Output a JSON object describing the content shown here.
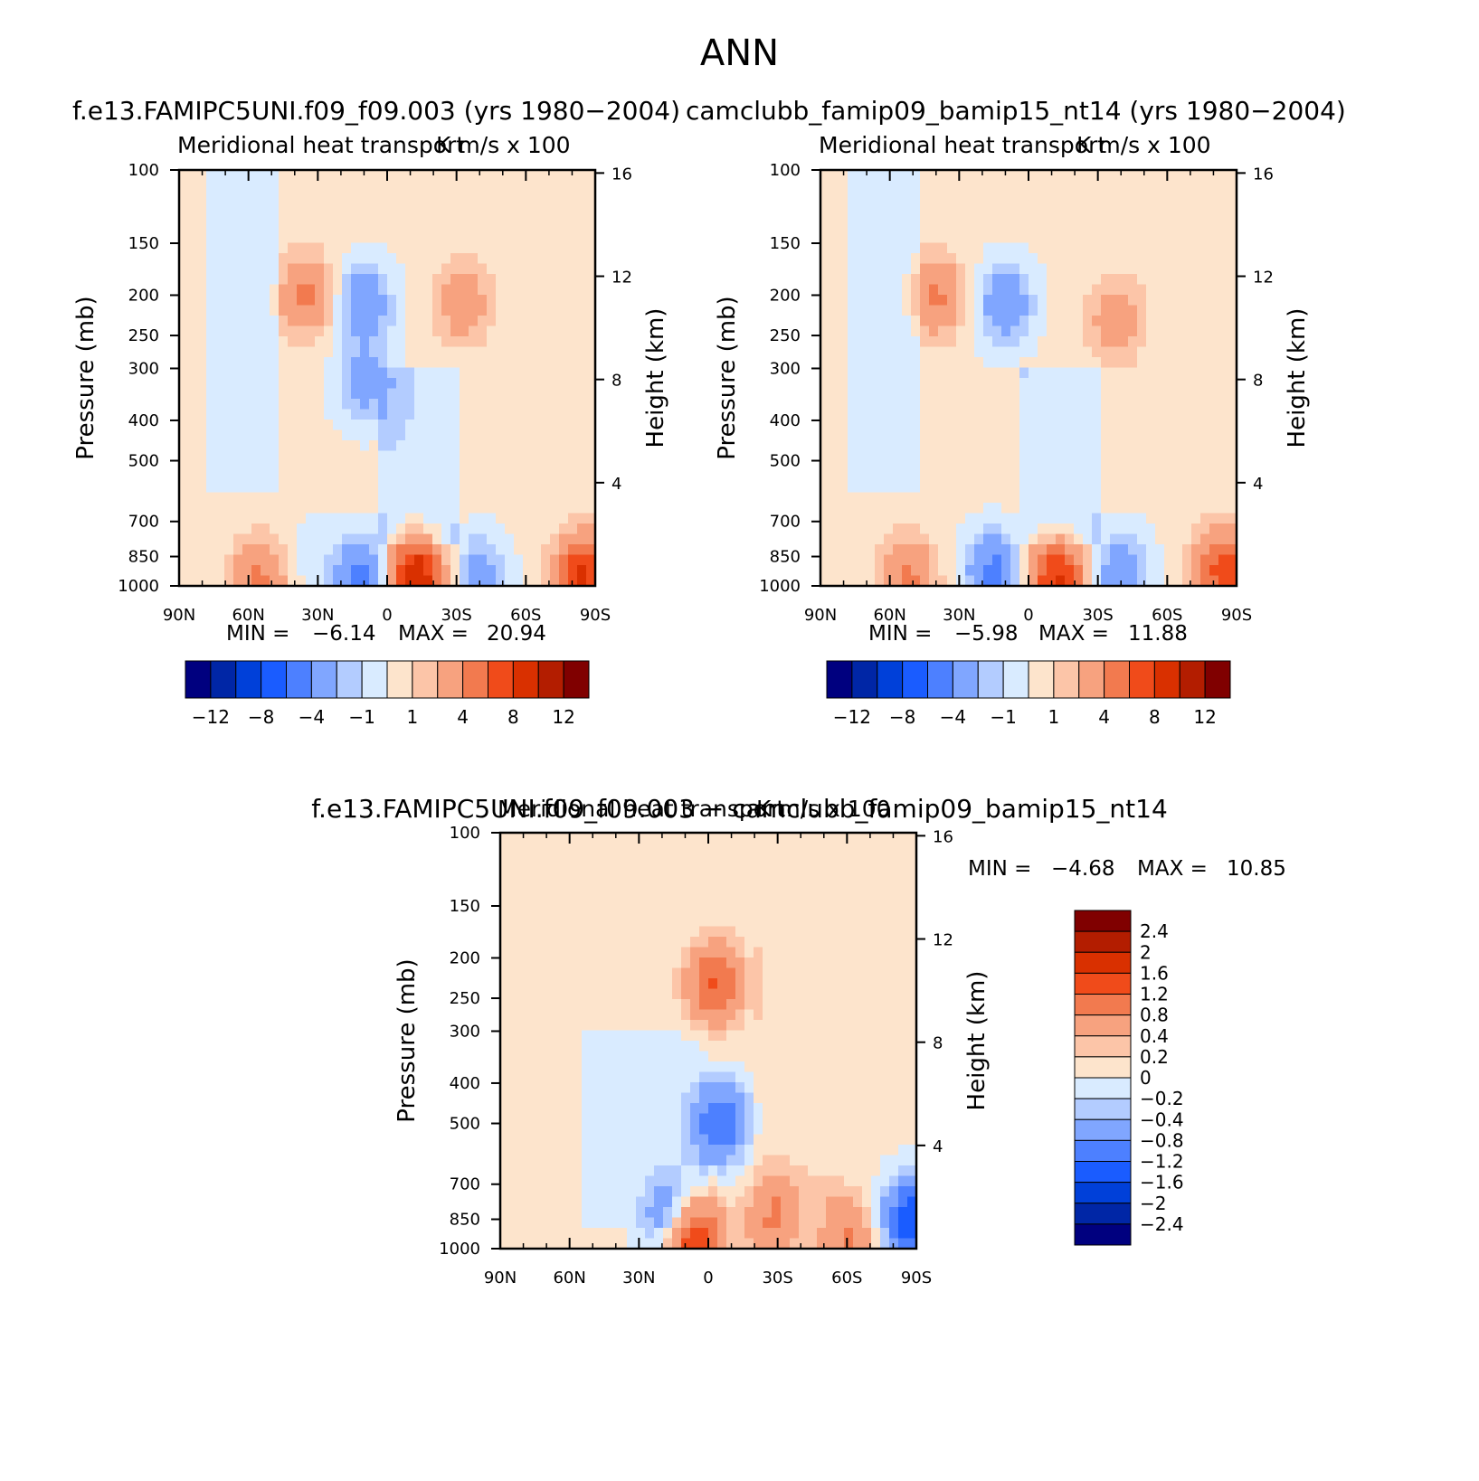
{
  "figure": {
    "title": "ANN"
  },
  "colors": {
    "abs_scale": [
      "#00007f",
      "#0026a6",
      "#0040d9",
      "#1a5cff",
      "#4d80ff",
      "#80a6ff",
      "#b3ccff",
      "#d9ebff",
      "#fde4cc",
      "#fcc5a8",
      "#f7a27f",
      "#f27a4f",
      "#f04b1a",
      "#d93000",
      "#b31d00",
      "#800000"
    ],
    "diff_scale": [
      "#800000",
      "#b31d00",
      "#d93000",
      "#f04b1a",
      "#f27a4f",
      "#f7a27f",
      "#fcc5a8",
      "#fde4cc",
      "#d9ebff",
      "#b3ccff",
      "#80a6ff",
      "#4d80ff",
      "#1a5cff",
      "#0040d9",
      "#0026a6",
      "#00007f"
    ]
  },
  "chart_data": [
    {
      "id": "panel1",
      "type": "heatmap",
      "title": "f.e13.FAMIPC5UNI.f09_f09.003 (yrs 1980−2004)",
      "subtitle_left": "Meridional heat transport",
      "subtitle_right": "K m/s x 100",
      "ylabel": "Pressure (mb)",
      "ylabel_right": "Height (km)",
      "x_ticks": [
        "90N",
        "60N",
        "30N",
        "0",
        "30S",
        "60S",
        "90S"
      ],
      "y_ticks": [
        "100",
        "150",
        "200",
        "250",
        "300",
        "400",
        "500",
        "700",
        "850",
        "1000"
      ],
      "y_ticks_right": [
        "16",
        "12",
        "8",
        "4"
      ],
      "min_label": "MIN =",
      "min": "−6.14",
      "max_label": "MAX =",
      "max": "20.94",
      "colorbar_labels": [
        "−12",
        "−8",
        "−4",
        "−1",
        "1",
        "4",
        "8",
        "12"
      ],
      "fields": [
        {
          "lat": 55,
          "p": 960,
          "value": 4
        },
        {
          "lat": 10,
          "p": 330,
          "value": -3
        },
        {
          "lat": 32,
          "p": 870,
          "value": -1
        },
        {
          "lat": 10,
          "p": 950,
          "value": -5
        },
        {
          "lat": -12,
          "p": 960,
          "value": 10
        },
        {
          "lat": -40,
          "p": 930,
          "value": -3
        },
        {
          "lat": -85,
          "p": 950,
          "value": 8
        },
        {
          "lat": 35,
          "p": 200,
          "value": 4
        },
        {
          "lat": -33,
          "p": 210,
          "value": 3
        },
        {
          "lat": 10,
          "p": 210,
          "value": -4
        }
      ]
    },
    {
      "id": "panel2",
      "type": "heatmap",
      "title": "camclubb_famip09_bamip15_nt14 (yrs 1980−2004)",
      "subtitle_left": "Meridional heat transport",
      "subtitle_right": "K m/s x 100",
      "ylabel": "Pressure (mb)",
      "ylabel_right": "Height (km)",
      "x_ticks": [
        "90N",
        "60N",
        "30N",
        "0",
        "30S",
        "60S",
        "90S"
      ],
      "y_ticks": [
        "100",
        "150",
        "200",
        "250",
        "300",
        "400",
        "500",
        "700",
        "850",
        "1000"
      ],
      "y_ticks_right": [
        "16",
        "12",
        "8",
        "4"
      ],
      "min_label": "MIN =",
      "min": "−5.98",
      "max_label": "MAX =",
      "max": "11.88",
      "colorbar_labels": [
        "−12",
        "−8",
        "−4",
        "−1",
        "1",
        "4",
        "8",
        "12"
      ],
      "fields": [
        {
          "lat": 52,
          "p": 950,
          "value": 4
        },
        {
          "lat": 15,
          "p": 930,
          "value": -5
        },
        {
          "lat": -12,
          "p": 960,
          "value": 8
        },
        {
          "lat": -40,
          "p": 940,
          "value": -4
        },
        {
          "lat": -85,
          "p": 920,
          "value": 7
        },
        {
          "lat": 40,
          "p": 200,
          "value": 4
        },
        {
          "lat": -38,
          "p": 230,
          "value": 3
        },
        {
          "lat": 10,
          "p": 210,
          "value": -4
        }
      ]
    },
    {
      "id": "diff",
      "type": "heatmap",
      "title": "f.e13.FAMIPC5UNI.f09_f09.003 − camclubb_famip09_bamip15_nt14",
      "subtitle_left": "Meridional heat transport",
      "subtitle_right": "K m/s x 100",
      "ylabel": "Pressure (mb)",
      "ylabel_right": "Height (km)",
      "x_ticks": [
        "90N",
        "60N",
        "30N",
        "0",
        "30S",
        "60S",
        "90S"
      ],
      "y_ticks": [
        "100",
        "150",
        "200",
        "250",
        "300",
        "400",
        "500",
        "700",
        "850",
        "1000"
      ],
      "y_ticks_right": [
        "16",
        "12",
        "8",
        "4"
      ],
      "min_label": "MIN =",
      "min": "−4.68",
      "max_label": "MAX =",
      "max": "10.85",
      "colorbar_labels": [
        "2.4",
        "2",
        "1.6",
        "1.2",
        "0.8",
        "0.4",
        "0.2",
        "0",
        "−0.2",
        "−0.4",
        "−0.8",
        "−1.2",
        "−1.6",
        "−2",
        "−2.4"
      ],
      "fields": [
        {
          "lat": 8,
          "p": 920,
          "value": 2
        },
        {
          "lat": 15,
          "p": 850,
          "value": -1.2
        },
        {
          "lat": -5,
          "p": 500,
          "value": -1.2
        },
        {
          "lat": -3,
          "p": 230,
          "value": 1.2
        },
        {
          "lat": -28,
          "p": 850,
          "value": 0.8
        },
        {
          "lat": -60,
          "p": 940,
          "value": 0.8
        },
        {
          "lat": -88,
          "p": 850,
          "value": -1.6
        }
      ]
    }
  ]
}
